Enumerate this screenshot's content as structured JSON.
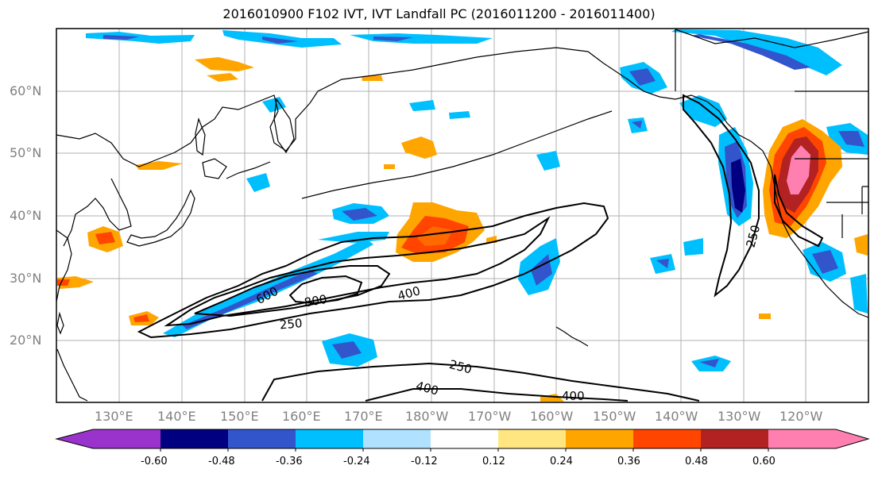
{
  "title": "2016010900 F102 IVT, IVT Landfall PC (2016011200 - 2016011400)",
  "lat_labels": [
    "60°N",
    "50°N",
    "40°N",
    "30°N",
    "20°N"
  ],
  "lon_labels": [
    "130°E",
    "140°E",
    "150°E",
    "160°E",
    "170°E",
    "180°W",
    "170°W",
    "160°W",
    "150°W",
    "140°W",
    "130°W",
    "120°W"
  ],
  "contour_labels": [
    "600",
    "800",
    "400",
    "250",
    "250",
    "400",
    "400",
    "250"
  ],
  "colorbar": {
    "tick_labels": [
      "-0.60",
      "-0.48",
      "-0.36",
      "-0.24",
      "-0.12",
      "0.12",
      "0.24",
      "0.36",
      "0.48",
      "0.60"
    ],
    "colors": [
      "#9933cc",
      "#000080",
      "#3355cc",
      "#00bfff",
      "#b0e2ff",
      "#ffffff",
      "#ffe680",
      "#ffa500",
      "#ff4500",
      "#b22222",
      "#ff80b0"
    ]
  },
  "colors": {
    "contour": "#000000",
    "coast": "#000000",
    "grid": "#b0b0b0"
  }
}
